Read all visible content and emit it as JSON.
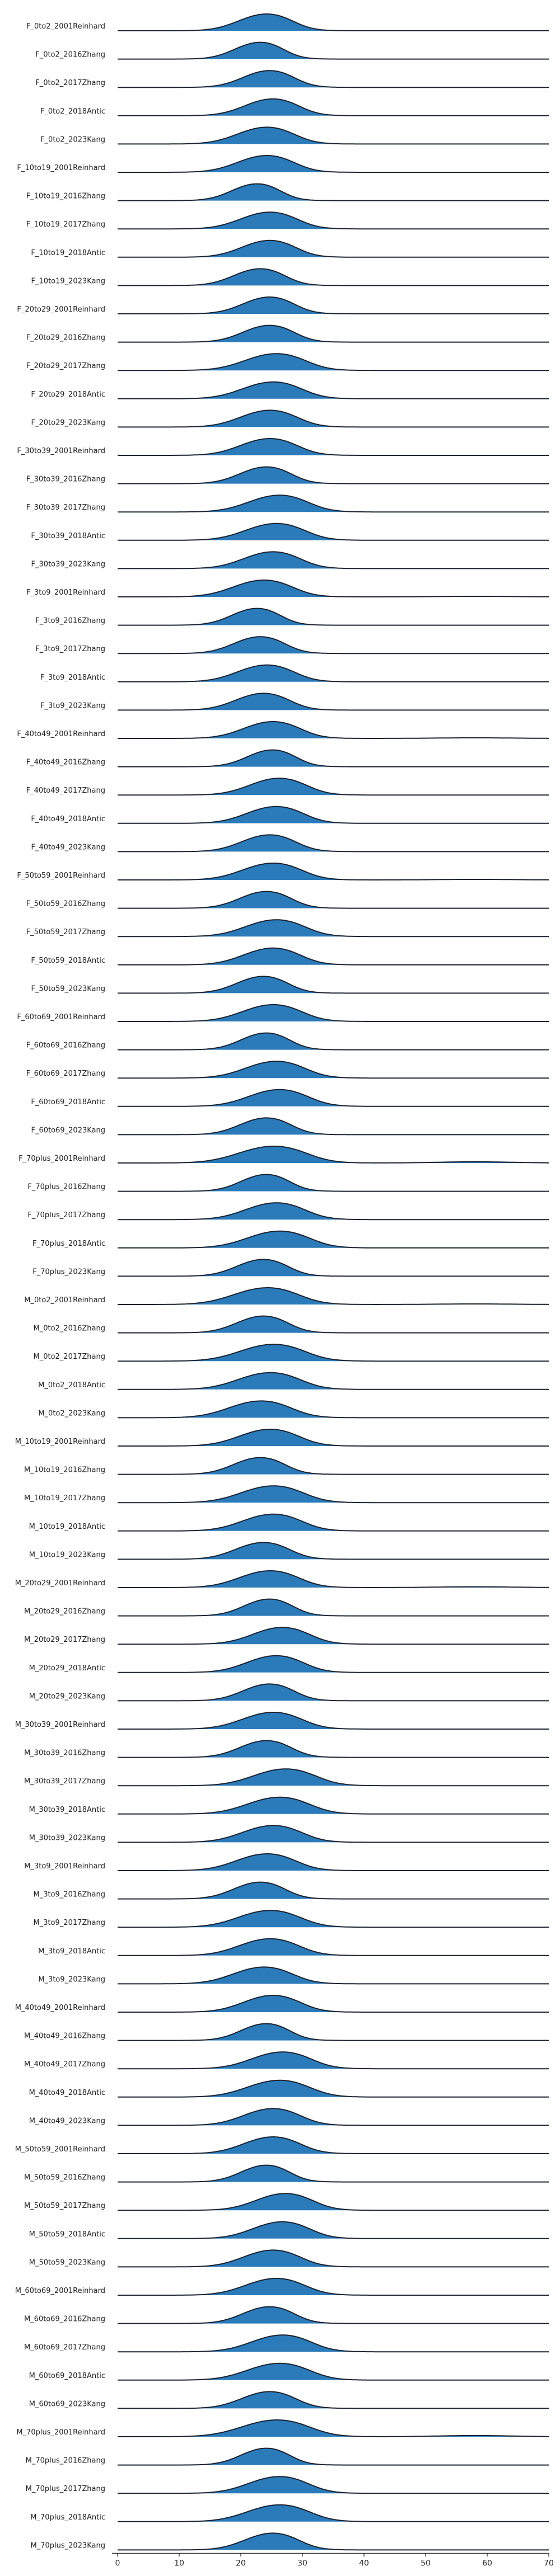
{
  "chart_data": {
    "type": "ridgeline",
    "title": "",
    "xlabel": "",
    "ylabel": "",
    "xlim": [
      0,
      70
    ],
    "x_ticks": [
      "0",
      "10",
      "20",
      "30",
      "40",
      "50",
      "60",
      "70"
    ],
    "fill_color": "#2b7bba",
    "line_color": "#1b2230",
    "grid": false,
    "series": [
      {
        "name": "F_0to2_2001Reinhard",
        "mean": 23.5,
        "sd": 4.0,
        "tail": 0.0
      },
      {
        "name": "F_0to2_2016Zhang",
        "mean": 22.5,
        "sd": 3.6,
        "tail": 0.0
      },
      {
        "name": "F_0to2_2017Zhang",
        "mean": 24.0,
        "sd": 3.8,
        "tail": 0.0
      },
      {
        "name": "F_0to2_2018Antic",
        "mean": 24.5,
        "sd": 4.0,
        "tail": 0.0
      },
      {
        "name": "F_0to2_2023Kang",
        "mean": 23.5,
        "sd": 4.2,
        "tail": 0.0
      },
      {
        "name": "F_10to19_2001Reinhard",
        "mean": 23.5,
        "sd": 4.2,
        "tail": 0.0
      },
      {
        "name": "F_10to19_2016Zhang",
        "mean": 22.0,
        "sd": 3.6,
        "tail": 0.0
      },
      {
        "name": "F_10to19_2017Zhang",
        "mean": 24.0,
        "sd": 4.2,
        "tail": 0.0
      },
      {
        "name": "F_10to19_2018Antic",
        "mean": 24.0,
        "sd": 4.0,
        "tail": 0.0
      },
      {
        "name": "F_10to19_2023Kang",
        "mean": 22.5,
        "sd": 3.8,
        "tail": 0.0
      },
      {
        "name": "F_20to29_2001Reinhard",
        "mean": 24.0,
        "sd": 3.8,
        "tail": 0.0
      },
      {
        "name": "F_20to29_2016Zhang",
        "mean": 24.0,
        "sd": 3.8,
        "tail": 0.0
      },
      {
        "name": "F_20to29_2017Zhang",
        "mean": 25.0,
        "sd": 4.5,
        "tail": 0.0
      },
      {
        "name": "F_20to29_2018Antic",
        "mean": 24.5,
        "sd": 4.4,
        "tail": 0.0
      },
      {
        "name": "F_20to29_2023Kang",
        "mean": 24.0,
        "sd": 4.2,
        "tail": 0.0
      },
      {
        "name": "F_30to39_2001Reinhard",
        "mean": 24.0,
        "sd": 4.2,
        "tail": 0.0
      },
      {
        "name": "F_30to39_2016Zhang",
        "mean": 23.5,
        "sd": 3.8,
        "tail": 0.0
      },
      {
        "name": "F_30to39_2017Zhang",
        "mean": 25.5,
        "sd": 4.4,
        "tail": 0.0
      },
      {
        "name": "F_30to39_2018Antic",
        "mean": 25.0,
        "sd": 4.4,
        "tail": 0.0
      },
      {
        "name": "F_30to39_2023Kang",
        "mean": 24.5,
        "sd": 4.2,
        "tail": 0.0
      },
      {
        "name": "F_3to9_2001Reinhard",
        "mean": 23.0,
        "sd": 4.4,
        "tail": 0.15
      },
      {
        "name": "F_3to9_2016Zhang",
        "mean": 22.0,
        "sd": 3.6,
        "tail": 0.0
      },
      {
        "name": "F_3to9_2017Zhang",
        "mean": 22.5,
        "sd": 3.8,
        "tail": 0.0
      },
      {
        "name": "F_3to9_2018Antic",
        "mean": 23.5,
        "sd": 4.2,
        "tail": 0.0
      },
      {
        "name": "F_3to9_2023Kang",
        "mean": 23.0,
        "sd": 4.0,
        "tail": 0.0
      },
      {
        "name": "F_40to49_2001Reinhard",
        "mean": 24.5,
        "sd": 4.2,
        "tail": 0.15
      },
      {
        "name": "F_40to49_2016Zhang",
        "mean": 24.5,
        "sd": 3.6,
        "tail": 0.0
      },
      {
        "name": "F_40to49_2017Zhang",
        "mean": 25.5,
        "sd": 4.2,
        "tail": 0.0
      },
      {
        "name": "F_40to49_2018Antic",
        "mean": 25.0,
        "sd": 4.2,
        "tail": 0.0
      },
      {
        "name": "F_40to49_2023Kang",
        "mean": 24.0,
        "sd": 4.0,
        "tail": 0.0
      },
      {
        "name": "F_50to59_2001Reinhard",
        "mean": 24.5,
        "sd": 4.4,
        "tail": 0.15
      },
      {
        "name": "F_50to59_2016Zhang",
        "mean": 23.5,
        "sd": 3.8,
        "tail": 0.0
      },
      {
        "name": "F_50to59_2017Zhang",
        "mean": 25.0,
        "sd": 4.4,
        "tail": 0.0
      },
      {
        "name": "F_50to59_2018Antic",
        "mean": 24.5,
        "sd": 4.2,
        "tail": 0.0
      },
      {
        "name": "F_50to59_2023Kang",
        "mean": 23.0,
        "sd": 3.8,
        "tail": 0.0
      },
      {
        "name": "F_60to69_2001Reinhard",
        "mean": 24.5,
        "sd": 4.4,
        "tail": 0.0
      },
      {
        "name": "F_60to69_2016Zhang",
        "mean": 23.5,
        "sd": 3.6,
        "tail": 0.0
      },
      {
        "name": "F_60to69_2017Zhang",
        "mean": 25.0,
        "sd": 4.4,
        "tail": 0.0
      },
      {
        "name": "F_60to69_2018Antic",
        "mean": 25.5,
        "sd": 4.4,
        "tail": 0.0
      },
      {
        "name": "F_60to69_2023Kang",
        "mean": 23.5,
        "sd": 3.8,
        "tail": 0.0
      },
      {
        "name": "F_70plus_2001Reinhard",
        "mean": 24.5,
        "sd": 5.0,
        "tail": 0.3
      },
      {
        "name": "F_70plus_2016Zhang",
        "mean": 23.5,
        "sd": 3.6,
        "tail": 0.0
      },
      {
        "name": "F_70plus_2017Zhang",
        "mean": 25.0,
        "sd": 4.4,
        "tail": 0.0
      },
      {
        "name": "F_70plus_2018Antic",
        "mean": 25.5,
        "sd": 4.6,
        "tail": 0.0
      },
      {
        "name": "F_70plus_2023Kang",
        "mean": 23.0,
        "sd": 3.8,
        "tail": 0.0
      },
      {
        "name": "M_0to2_2001Reinhard",
        "mean": 23.5,
        "sd": 4.8,
        "tail": 0.15
      },
      {
        "name": "M_0to2_2016Zhang",
        "mean": 23.0,
        "sd": 3.8,
        "tail": 0.0
      },
      {
        "name": "M_0to2_2017Zhang",
        "mean": 24.5,
        "sd": 4.8,
        "tail": 0.0
      },
      {
        "name": "M_0to2_2018Antic",
        "mean": 24.0,
        "sd": 4.6,
        "tail": 0.0
      },
      {
        "name": "M_0to2_2023Kang",
        "mean": 22.5,
        "sd": 4.6,
        "tail": 0.0
      },
      {
        "name": "M_10to19_2001Reinhard",
        "mean": 24.0,
        "sd": 4.4,
        "tail": 0.0
      },
      {
        "name": "M_10to19_2016Zhang",
        "mean": 22.5,
        "sd": 3.8,
        "tail": 0.0
      },
      {
        "name": "M_10to19_2017Zhang",
        "mean": 24.5,
        "sd": 4.6,
        "tail": 0.0
      },
      {
        "name": "M_10to19_2018Antic",
        "mean": 24.5,
        "sd": 4.4,
        "tail": 0.0
      },
      {
        "name": "M_10to19_2023Kang",
        "mean": 23.0,
        "sd": 4.0,
        "tail": 0.0
      },
      {
        "name": "M_20to29_2001Reinhard",
        "mean": 24.0,
        "sd": 4.4,
        "tail": 0.2
      },
      {
        "name": "M_20to29_2016Zhang",
        "mean": 24.0,
        "sd": 3.6,
        "tail": 0.0
      },
      {
        "name": "M_20to29_2017Zhang",
        "mean": 26.0,
        "sd": 4.2,
        "tail": 0.0
      },
      {
        "name": "M_20to29_2018Antic",
        "mean": 25.0,
        "sd": 4.2,
        "tail": 0.0
      },
      {
        "name": "M_20to29_2023Kang",
        "mean": 24.0,
        "sd": 3.8,
        "tail": 0.0
      },
      {
        "name": "M_30to39_2001Reinhard",
        "mean": 24.5,
        "sd": 4.4,
        "tail": 0.0
      },
      {
        "name": "M_30to39_2016Zhang",
        "mean": 23.5,
        "sd": 3.8,
        "tail": 0.0
      },
      {
        "name": "M_30to39_2017Zhang",
        "mean": 26.5,
        "sd": 4.6,
        "tail": 0.0
      },
      {
        "name": "M_30to39_2018Antic",
        "mean": 25.5,
        "sd": 4.6,
        "tail": 0.0
      },
      {
        "name": "M_30to39_2023Kang",
        "mean": 24.5,
        "sd": 4.4,
        "tail": 0.0
      },
      {
        "name": "M_3to9_2001Reinhard",
        "mean": 23.5,
        "sd": 4.4,
        "tail": 0.0
      },
      {
        "name": "M_3to9_2016Zhang",
        "mean": 22.5,
        "sd": 3.8,
        "tail": 0.0
      },
      {
        "name": "M_3to9_2017Zhang",
        "mean": 24.0,
        "sd": 4.6,
        "tail": 0.0
      },
      {
        "name": "M_3to9_2018Antic",
        "mean": 24.0,
        "sd": 4.4,
        "tail": 0.0
      },
      {
        "name": "M_3to9_2023Kang",
        "mean": 23.0,
        "sd": 4.4,
        "tail": 0.0
      },
      {
        "name": "M_40to49_2001Reinhard",
        "mean": 24.5,
        "sd": 4.2,
        "tail": 0.0
      },
      {
        "name": "M_40to49_2016Zhang",
        "mean": 23.5,
        "sd": 3.6,
        "tail": 0.0
      },
      {
        "name": "M_40to49_2017Zhang",
        "mean": 26.0,
        "sd": 4.4,
        "tail": 0.0
      },
      {
        "name": "M_40to49_2018Antic",
        "mean": 25.5,
        "sd": 4.6,
        "tail": 0.0
      },
      {
        "name": "M_40to49_2023Kang",
        "mean": 24.5,
        "sd": 4.2,
        "tail": 0.0
      },
      {
        "name": "M_50to59_2001Reinhard",
        "mean": 24.5,
        "sd": 4.2,
        "tail": 0.0
      },
      {
        "name": "M_50to59_2016Zhang",
        "mean": 23.5,
        "sd": 3.6,
        "tail": 0.0
      },
      {
        "name": "M_50to59_2017Zhang",
        "mean": 26.5,
        "sd": 4.2,
        "tail": 0.0
      },
      {
        "name": "M_50to59_2018Antic",
        "mean": 26.0,
        "sd": 4.2,
        "tail": 0.0
      },
      {
        "name": "M_50to59_2023Kang",
        "mean": 24.5,
        "sd": 4.2,
        "tail": 0.0
      },
      {
        "name": "M_60to69_2001Reinhard",
        "mean": 25.0,
        "sd": 4.4,
        "tail": 0.0
      },
      {
        "name": "M_60to69_2016Zhang",
        "mean": 24.0,
        "sd": 3.8,
        "tail": 0.0
      },
      {
        "name": "M_60to69_2017Zhang",
        "mean": 26.0,
        "sd": 4.4,
        "tail": 0.0
      },
      {
        "name": "M_60to69_2018Antic",
        "mean": 25.5,
        "sd": 4.6,
        "tail": 0.0
      },
      {
        "name": "M_60to69_2023Kang",
        "mean": 24.0,
        "sd": 4.0,
        "tail": 0.0
      },
      {
        "name": "M_70plus_2001Reinhard",
        "mean": 25.0,
        "sd": 5.0,
        "tail": 0.3
      },
      {
        "name": "M_70plus_2016Zhang",
        "mean": 23.5,
        "sd": 3.6,
        "tail": 0.0
      },
      {
        "name": "M_70plus_2017Zhang",
        "mean": 25.5,
        "sd": 4.4,
        "tail": 0.0
      },
      {
        "name": "M_70plus_2018Antic",
        "mean": 25.5,
        "sd": 4.6,
        "tail": 0.0
      },
      {
        "name": "M_70plus_2023Kang",
        "mean": 24.5,
        "sd": 4.0,
        "tail": 0.0
      }
    ]
  }
}
